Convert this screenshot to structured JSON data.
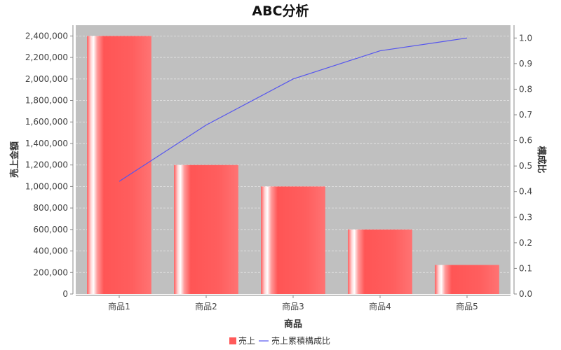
{
  "chart_data": {
    "type": "bar",
    "title": "ABC分析",
    "xlabel": "商品",
    "ylabel": "売上金額",
    "y2label": "構成比",
    "categories": [
      "商品1",
      "商品2",
      "商品3",
      "商品4",
      "商品5"
    ],
    "series": [
      {
        "name": "売上",
        "type": "bar",
        "axis": "left",
        "values": [
          2400000,
          1200000,
          1000000,
          600000,
          270000
        ]
      },
      {
        "name": "売上累積構成比",
        "type": "line",
        "axis": "right",
        "values": [
          0.44,
          0.66,
          0.84,
          0.95,
          1.0
        ]
      }
    ],
    "ylim": [
      0,
      2500000
    ],
    "y2lim": [
      0,
      1.05
    ],
    "yticks": [
      "0",
      "200,000",
      "400,000",
      "600,000",
      "800,000",
      "1,000,000",
      "1,200,000",
      "1,400,000",
      "1,600,000",
      "1,800,000",
      "2,000,000",
      "2,200,000",
      "2,400,000"
    ],
    "y2ticks": [
      "0.0",
      "0.1",
      "0.2",
      "0.3",
      "0.4",
      "0.5",
      "0.6",
      "0.7",
      "0.8",
      "0.9",
      "1.0"
    ],
    "grid": true,
    "legend": "bottom",
    "colors": {
      "bar": "#ff5a5a",
      "line": "#5555ee",
      "plot_bg": "#c0c0c0",
      "grid": "#e6e6e6"
    }
  }
}
